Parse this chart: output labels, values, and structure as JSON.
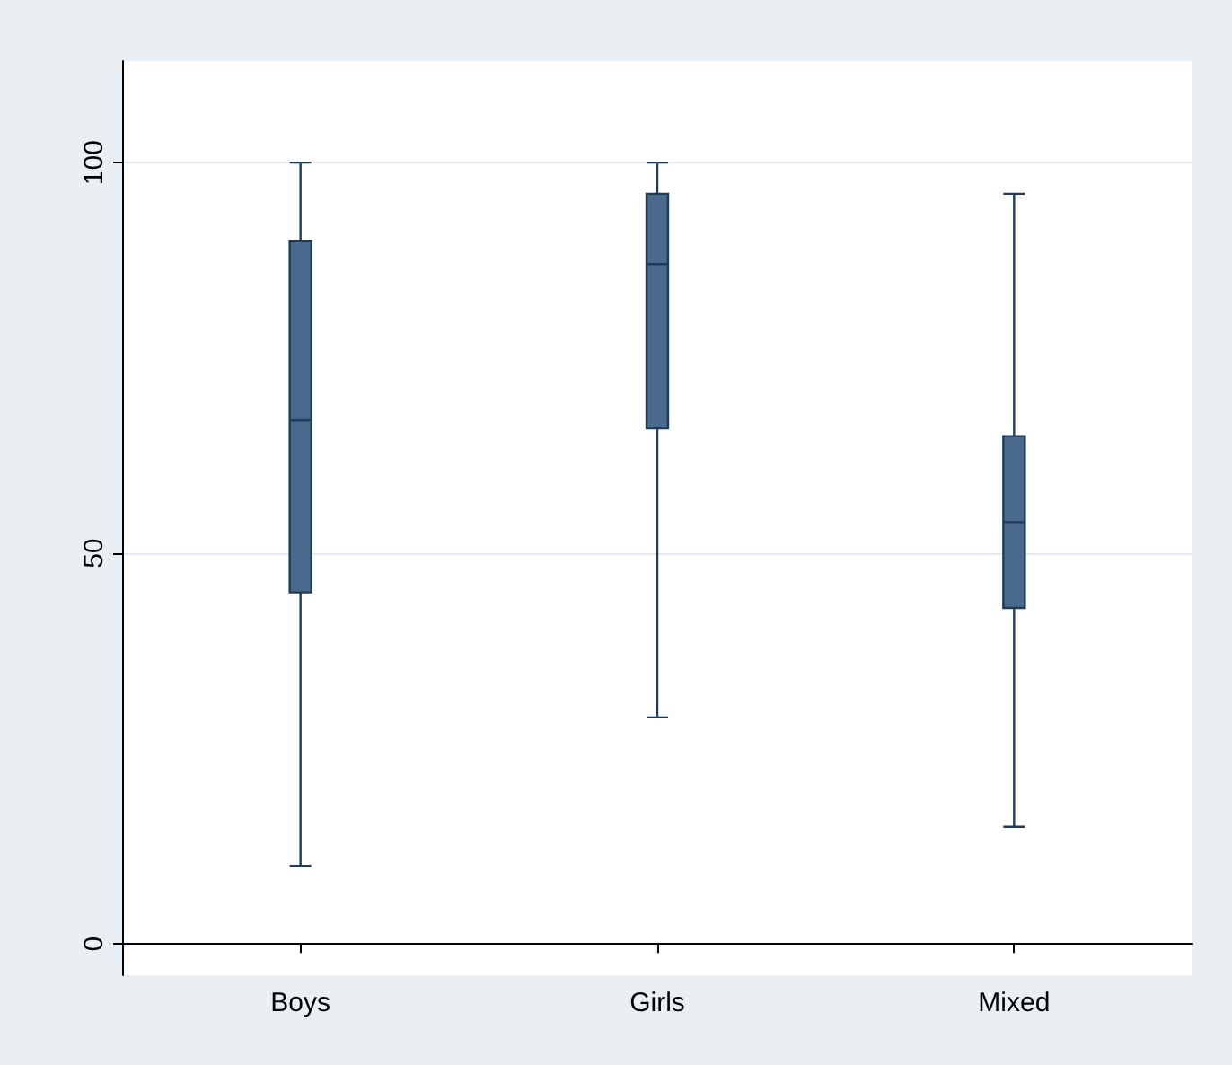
{
  "chart_data": {
    "type": "box",
    "categories": [
      "Boys",
      "Girls",
      "Mixed"
    ],
    "boxes": [
      {
        "low": 10,
        "q1": 45,
        "median": 67,
        "q3": 90,
        "high": 100
      },
      {
        "low": 29,
        "q1": 66,
        "median": 87,
        "q3": 96,
        "high": 100
      },
      {
        "low": 15,
        "q1": 43,
        "median": 54,
        "q3": 65,
        "high": 96
      }
    ],
    "color": "#4a6a8c",
    "ylim": [
      -4,
      113
    ],
    "yticks": [
      0,
      50,
      100
    ],
    "grid": "y"
  }
}
